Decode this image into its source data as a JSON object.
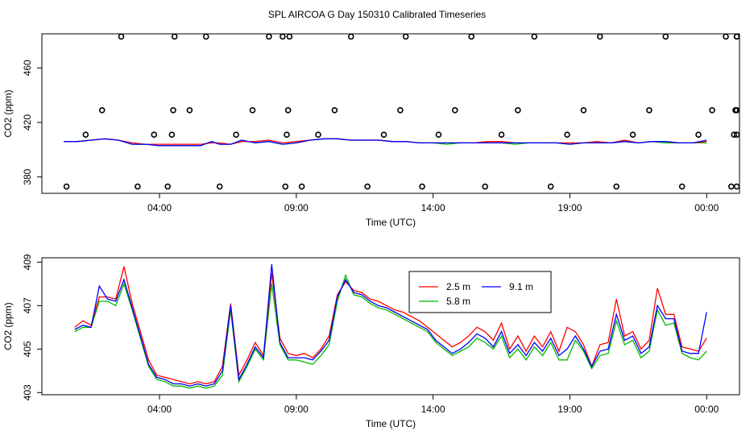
{
  "title": "SPL AIRCOA G  Day 150310  Calibrated Timeseries",
  "colors": {
    "s25": "#ff0000",
    "s58": "#00bb00",
    "s91": "#0000ff",
    "frame": "#000000"
  },
  "chart_data": [
    {
      "type": "line",
      "name": "top",
      "xlabel": "Time (UTC)",
      "ylabel": "CO2 (ppm)",
      "xlim": [
        -0.3,
        25.2
      ],
      "ylim": [
        368,
        485
      ],
      "x_ticks": [
        4,
        9,
        14,
        19,
        24
      ],
      "x_tick_labels": [
        "04:00",
        "09:00",
        "14:00",
        "19:00",
        "00:00"
      ],
      "y_ticks": [
        380,
        420,
        460
      ],
      "y_tick_labels": [
        "380",
        "420",
        "460"
      ],
      "grid": false,
      "series": [
        {
          "color_key": "s25",
          "x": [
            0.5,
            1.0,
            1.5,
            2.0,
            2.5,
            3.0,
            3.5,
            4.0,
            4.5,
            5.0,
            5.5,
            5.9,
            6.2,
            6.6,
            7.0,
            7.5,
            8.0,
            8.5,
            9.0,
            9.5,
            10.0,
            10.5,
            11.0,
            11.5,
            12.0,
            12.5,
            13.0,
            13.5,
            14.0,
            14.5,
            15.0,
            15.5,
            16.0,
            16.5,
            17.0,
            17.5,
            18.0,
            18.5,
            19.0,
            19.5,
            20.0,
            20.5,
            21.0,
            21.5,
            22.0,
            22.5,
            23.0,
            23.5,
            24.0
          ],
          "y": [
            406,
            406,
            407,
            408,
            407,
            405,
            404,
            404,
            404,
            404,
            404,
            405,
            405,
            404,
            406,
            406,
            407,
            405,
            406,
            407,
            408,
            408,
            407,
            407,
            407,
            406,
            406,
            405,
            405,
            405,
            405,
            405,
            406,
            406,
            405,
            405,
            405,
            405,
            405,
            405,
            406,
            405,
            407,
            405,
            406,
            406,
            405,
            405,
            406
          ]
        },
        {
          "color_key": "s58",
          "x": [
            0.5,
            1.0,
            1.5,
            2.0,
            2.5,
            3.0,
            3.5,
            4.0,
            4.5,
            5.0,
            5.5,
            5.9,
            6.2,
            6.6,
            7.0,
            7.5,
            8.0,
            8.5,
            9.0,
            9.5,
            10.0,
            10.5,
            11.0,
            11.5,
            12.0,
            12.5,
            13.0,
            13.5,
            14.0,
            14.5,
            15.0,
            15.5,
            16.0,
            16.5,
            17.0,
            17.5,
            18.0,
            18.5,
            19.0,
            19.5,
            20.0,
            20.5,
            21.0,
            21.5,
            22.0,
            22.5,
            23.0,
            23.5,
            24.0
          ],
          "y": [
            406,
            406,
            407,
            408,
            407,
            404,
            404,
            403,
            403,
            403,
            403,
            406,
            404,
            404,
            407,
            405,
            406,
            404,
            405,
            407,
            408,
            408,
            407,
            407,
            407,
            406,
            406,
            405,
            405,
            404,
            405,
            405,
            405,
            405,
            404,
            405,
            405,
            405,
            404,
            405,
            405,
            405,
            406,
            405,
            406,
            405,
            405,
            405,
            405
          ]
        },
        {
          "color_key": "s91",
          "x": [
            0.5,
            1.0,
            1.5,
            2.0,
            2.5,
            3.0,
            3.5,
            4.0,
            4.5,
            5.0,
            5.5,
            5.9,
            6.2,
            6.6,
            7.0,
            7.5,
            8.0,
            8.5,
            9.0,
            9.5,
            10.0,
            10.5,
            11.0,
            11.5,
            12.0,
            12.5,
            13.0,
            13.5,
            14.0,
            14.5,
            15.0,
            15.5,
            16.0,
            16.5,
            17.0,
            17.5,
            18.0,
            18.5,
            19.0,
            19.5,
            20.0,
            20.5,
            21.0,
            21.5,
            22.0,
            22.5,
            23.0,
            23.5,
            24.0
          ],
          "y": [
            406,
            406,
            407,
            408,
            407,
            404,
            404,
            403,
            403,
            403,
            403,
            406,
            404,
            404,
            407,
            405,
            406,
            404,
            405,
            407,
            408,
            408,
            407,
            407,
            407,
            406,
            406,
            405,
            405,
            405,
            405,
            405,
            405,
            405,
            405,
            405,
            405,
            405,
            404,
            405,
            405,
            405,
            406,
            405,
            406,
            406,
            405,
            405,
            407
          ]
        }
      ],
      "points": {
        "marker": "circle",
        "y": [
          373,
          411,
          429,
          483,
          373,
          411,
          373,
          411,
          429,
          483,
          429,
          483,
          373,
          411,
          429,
          483,
          483,
          373,
          411,
          429,
          483,
          373,
          411,
          429,
          483,
          373,
          411,
          429,
          483,
          373,
          411,
          429,
          483,
          373,
          411,
          429,
          483,
          373,
          411,
          429,
          483,
          373,
          411,
          429,
          483,
          373,
          411,
          429,
          483,
          373,
          411,
          429,
          483,
          373,
          411,
          429,
          483
        ],
        "x": [
          0.6,
          1.3,
          1.9,
          2.6,
          3.2,
          3.8,
          4.3,
          4.45,
          4.5,
          4.55,
          5.1,
          5.7,
          6.2,
          6.8,
          7.4,
          8.0,
          8.5,
          8.6,
          8.65,
          8.7,
          8.75,
          9.2,
          9.8,
          10.4,
          11.0,
          11.6,
          12.2,
          12.8,
          13.0,
          13.6,
          14.2,
          14.8,
          15.4,
          15.9,
          16.5,
          17.1,
          17.7,
          18.3,
          18.9,
          19.5,
          20.1,
          20.7,
          21.3,
          21.9,
          22.5,
          23.1,
          23.7,
          24.2,
          24.7,
          24.9,
          25.0,
          25.05,
          25.1,
          25.1,
          25.1,
          25.1,
          25.1
        ]
      }
    },
    {
      "type": "line",
      "name": "bottom",
      "xlabel": "Time (UTC)",
      "ylabel": "CO2 (ppm)",
      "xlim": [
        -0.3,
        25.2
      ],
      "ylim": [
        402.9,
        409.2
      ],
      "x_ticks": [
        4,
        9,
        14,
        19,
        24
      ],
      "x_tick_labels": [
        "04:00",
        "09:00",
        "14:00",
        "19:00",
        "00:00"
      ],
      "y_ticks": [
        403,
        405,
        407,
        409
      ],
      "y_tick_labels": [
        "403",
        "405",
        "407",
        "409"
      ],
      "grid": false,
      "legend": {
        "placement": "top-center",
        "entries": [
          {
            "label": "2.5 m",
            "color_key": "s25"
          },
          {
            "label": "9.1 m",
            "color_key": "s91"
          },
          {
            "label": "5.8 m",
            "color_key": "s58"
          }
        ]
      },
      "series": [
        {
          "color_key": "s25",
          "x": [
            0.9,
            1.2,
            1.5,
            1.8,
            2.1,
            2.4,
            2.7,
            3.0,
            3.3,
            3.6,
            3.9,
            4.2,
            4.5,
            4.8,
            5.1,
            5.4,
            5.7,
            6.0,
            6.3,
            6.6,
            6.9,
            7.2,
            7.5,
            7.8,
            8.1,
            8.4,
            8.7,
            9.0,
            9.3,
            9.6,
            9.9,
            10.2,
            10.5,
            10.8,
            11.1,
            11.4,
            11.7,
            12.0,
            12.3,
            12.6,
            12.9,
            13.2,
            13.5,
            13.8,
            14.1,
            14.4,
            14.7,
            15.0,
            15.3,
            15.6,
            15.9,
            16.2,
            16.5,
            16.8,
            17.1,
            17.4,
            17.7,
            18.0,
            18.3,
            18.6,
            18.9,
            19.2,
            19.5,
            19.8,
            20.1,
            20.4,
            20.7,
            21.0,
            21.3,
            21.6,
            21.9,
            22.2,
            22.5,
            22.8,
            23.1,
            23.4,
            23.7,
            24.0
          ],
          "y": [
            406.0,
            406.3,
            406.1,
            407.4,
            407.4,
            407.3,
            408.8,
            407.1,
            405.8,
            404.5,
            403.8,
            403.7,
            403.6,
            403.5,
            403.4,
            403.5,
            403.4,
            403.5,
            404.2,
            407.1,
            403.8,
            404.5,
            405.3,
            404.7,
            408.5,
            405.5,
            404.8,
            404.7,
            404.8,
            404.6,
            405.0,
            405.6,
            407.5,
            408.1,
            407.7,
            407.6,
            407.3,
            407.2,
            407.0,
            406.8,
            406.7,
            406.5,
            406.3,
            406.0,
            405.7,
            405.4,
            405.1,
            405.3,
            405.6,
            406.0,
            405.8,
            405.4,
            406.2,
            405.0,
            405.6,
            404.9,
            405.6,
            405.1,
            405.8,
            404.9,
            406.0,
            405.8,
            405.2,
            404.2,
            405.2,
            405.3,
            407.3,
            405.6,
            405.8,
            405.0,
            405.4,
            407.8,
            406.6,
            406.6,
            405.1,
            405.0,
            404.9,
            405.5
          ]
        },
        {
          "color_key": "s58",
          "x": [
            0.9,
            1.2,
            1.5,
            1.8,
            2.1,
            2.4,
            2.7,
            3.0,
            3.3,
            3.6,
            3.9,
            4.2,
            4.5,
            4.8,
            5.1,
            5.4,
            5.7,
            6.0,
            6.3,
            6.6,
            6.9,
            7.2,
            7.5,
            7.8,
            8.1,
            8.4,
            8.7,
            9.0,
            9.3,
            9.6,
            9.9,
            10.2,
            10.5,
            10.8,
            11.1,
            11.4,
            11.7,
            12.0,
            12.3,
            12.6,
            12.9,
            13.2,
            13.5,
            13.8,
            14.1,
            14.4,
            14.7,
            15.0,
            15.3,
            15.6,
            15.9,
            16.2,
            16.5,
            16.8,
            17.1,
            17.4,
            17.7,
            18.0,
            18.3,
            18.6,
            18.9,
            19.2,
            19.5,
            19.8,
            20.1,
            20.4,
            20.7,
            21.0,
            21.3,
            21.6,
            21.9,
            22.2,
            22.5,
            22.8,
            23.1,
            23.4,
            23.7,
            24.0
          ],
          "y": [
            405.8,
            406.0,
            406.0,
            407.2,
            407.2,
            407.0,
            408.0,
            406.8,
            405.5,
            404.2,
            403.6,
            403.5,
            403.3,
            403.3,
            403.2,
            403.3,
            403.2,
            403.3,
            403.8,
            406.8,
            403.5,
            404.2,
            405.0,
            404.5,
            408.0,
            405.2,
            404.5,
            404.5,
            404.4,
            404.3,
            404.7,
            405.2,
            407.2,
            408.4,
            407.5,
            407.4,
            407.1,
            406.9,
            406.8,
            406.6,
            406.4,
            406.2,
            406.0,
            405.8,
            405.3,
            405.0,
            404.7,
            404.9,
            405.1,
            405.5,
            405.3,
            405.0,
            405.6,
            404.6,
            405.0,
            404.5,
            405.1,
            404.7,
            405.3,
            404.5,
            404.5,
            405.4,
            404.9,
            404.1,
            404.7,
            404.8,
            406.3,
            405.2,
            405.4,
            404.6,
            404.9,
            406.8,
            406.1,
            406.2,
            404.8,
            404.6,
            404.5,
            404.9
          ]
        },
        {
          "color_key": "s91",
          "x": [
            0.9,
            1.2,
            1.5,
            1.8,
            2.1,
            2.4,
            2.7,
            3.0,
            3.3,
            3.6,
            3.9,
            4.2,
            4.5,
            4.8,
            5.1,
            5.4,
            5.7,
            6.0,
            6.3,
            6.6,
            6.9,
            7.2,
            7.5,
            7.8,
            8.1,
            8.4,
            8.7,
            9.0,
            9.3,
            9.6,
            9.9,
            10.2,
            10.5,
            10.8,
            11.1,
            11.4,
            11.7,
            12.0,
            12.3,
            12.6,
            12.9,
            13.2,
            13.5,
            13.8,
            14.1,
            14.4,
            14.7,
            15.0,
            15.3,
            15.6,
            15.9,
            16.2,
            16.5,
            16.8,
            17.1,
            17.4,
            17.7,
            18.0,
            18.3,
            18.6,
            18.9,
            19.2,
            19.5,
            19.8,
            20.1,
            20.4,
            20.7,
            21.0,
            21.3,
            21.6,
            21.9,
            22.2,
            22.5,
            22.8,
            23.1,
            23.4,
            23.7,
            24.0
          ],
          "y": [
            405.9,
            406.1,
            406.0,
            407.9,
            407.3,
            407.2,
            408.2,
            406.9,
            405.6,
            404.3,
            403.7,
            403.6,
            403.4,
            403.4,
            403.3,
            403.4,
            403.3,
            403.4,
            404.0,
            407.0,
            403.6,
            404.3,
            405.1,
            404.6,
            408.9,
            405.3,
            404.6,
            404.6,
            404.6,
            404.5,
            404.9,
            405.4,
            407.4,
            408.2,
            407.6,
            407.5,
            407.2,
            407.0,
            406.9,
            406.7,
            406.5,
            406.3,
            406.1,
            405.9,
            405.4,
            405.1,
            404.8,
            405.0,
            405.3,
            405.7,
            405.5,
            405.1,
            405.8,
            404.8,
            405.2,
            404.7,
            405.3,
            404.9,
            405.5,
            404.7,
            405.0,
            405.6,
            405.0,
            404.2,
            404.9,
            405.0,
            406.6,
            405.4,
            405.6,
            404.8,
            405.1,
            407.0,
            406.4,
            406.4,
            404.9,
            404.8,
            404.8,
            406.7
          ]
        }
      ]
    }
  ]
}
